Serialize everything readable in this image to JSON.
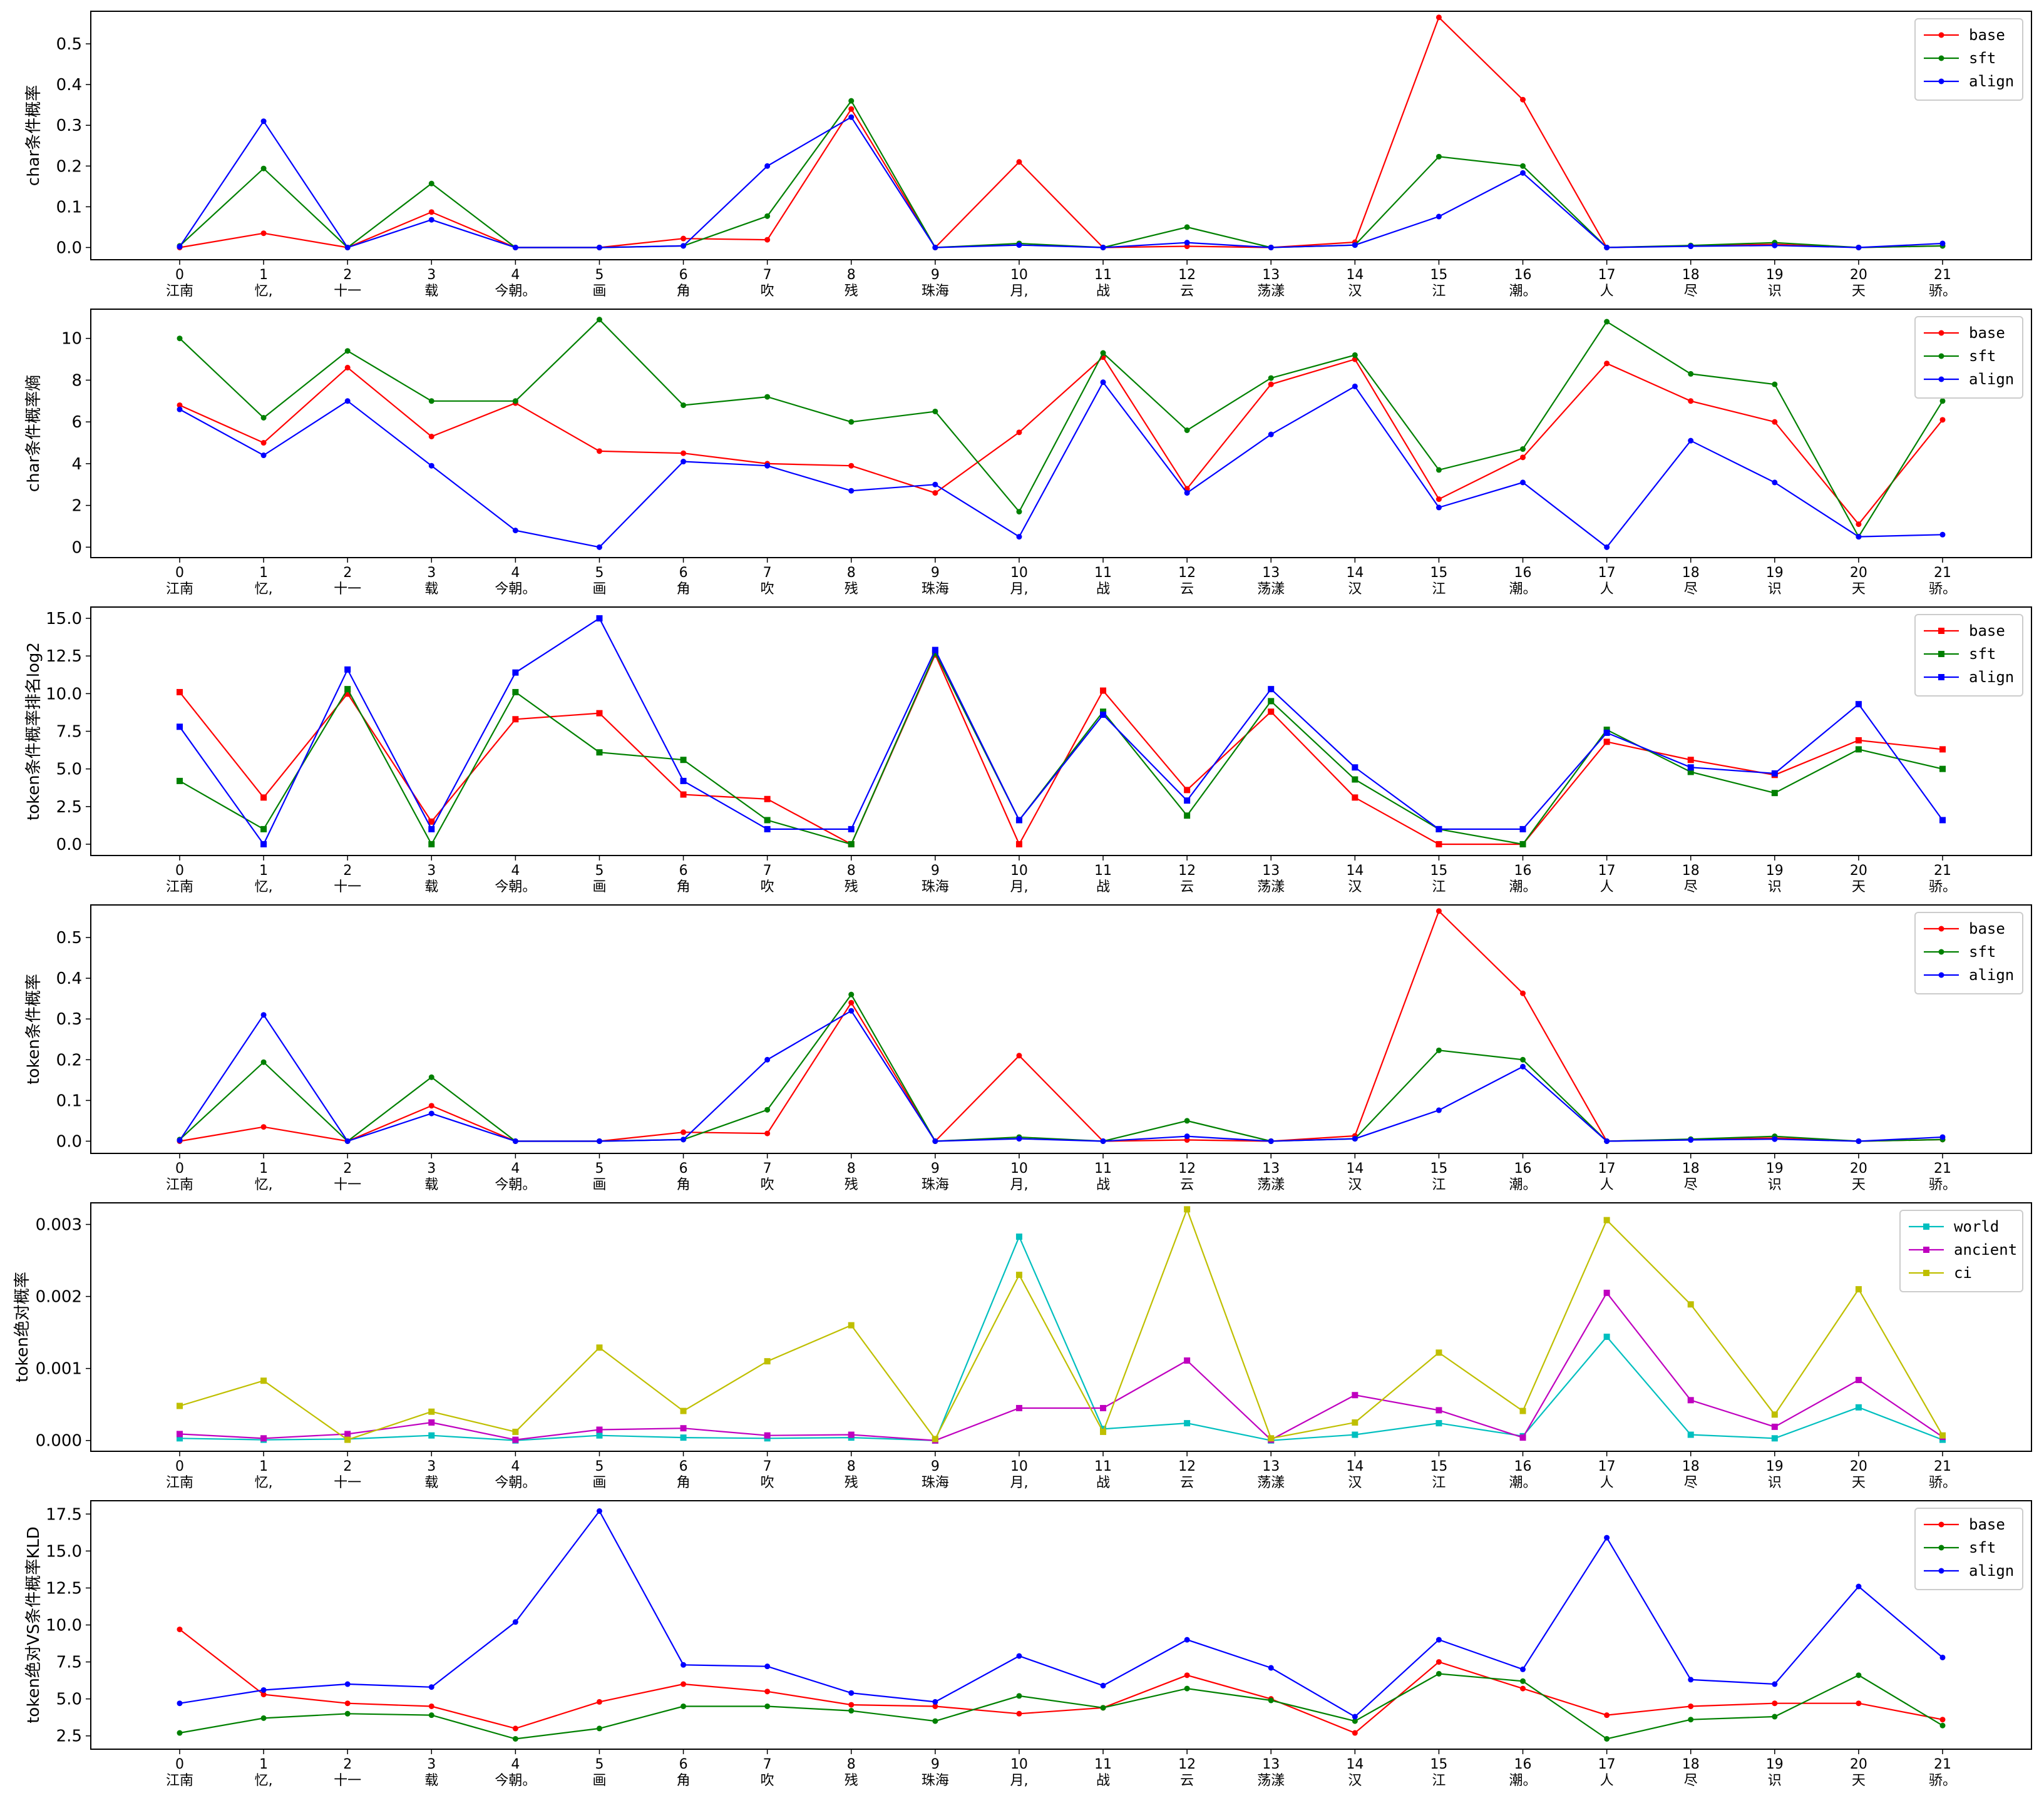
{
  "x_words": [
    "江南",
    "忆,",
    "十一",
    "载",
    "今朝。",
    "画",
    "角",
    "吹",
    "残",
    "珠海",
    "月,",
    "战",
    "云",
    "荡漾",
    "汉",
    "江",
    "潮。",
    "人",
    "尽",
    "识",
    "天",
    "骄。"
  ],
  "chart_data": [
    {
      "type": "line",
      "ylabel": "char条件概率",
      "ylim": [
        -0.03,
        0.58
      ],
      "yticks": [
        0.0,
        0.1,
        0.2,
        0.3,
        0.4,
        0.5
      ],
      "ytick_labels": [
        "0.0",
        "0.1",
        "0.2",
        "0.3",
        "0.4",
        "0.5"
      ],
      "marker": "circle",
      "series": [
        {
          "name": "base",
          "color": "#ff0000",
          "values": [
            0.0,
            0.035,
            0.0,
            0.087,
            0.0,
            0.0,
            0.022,
            0.019,
            0.34,
            0.0,
            0.21,
            0.0,
            0.003,
            0.0,
            0.013,
            0.565,
            0.363,
            0.0,
            0.004,
            0.008,
            0.0,
            0.004
          ]
        },
        {
          "name": "sft",
          "color": "#008000",
          "values": [
            0.004,
            0.194,
            0.0,
            0.157,
            0.0,
            0.0,
            0.004,
            0.077,
            0.36,
            0.0,
            0.01,
            0.0,
            0.05,
            0.0,
            0.006,
            0.223,
            0.2,
            0.0,
            0.005,
            0.012,
            0.0,
            0.004
          ]
        },
        {
          "name": "align",
          "color": "#0000ff",
          "values": [
            0.002,
            0.31,
            0.0,
            0.068,
            0.0,
            0.0,
            0.004,
            0.2,
            0.32,
            0.0,
            0.006,
            0.0,
            0.012,
            0.0,
            0.006,
            0.076,
            0.183,
            0.0,
            0.003,
            0.005,
            0.0,
            0.01
          ]
        }
      ]
    },
    {
      "type": "line",
      "ylabel": "char条件概率熵",
      "ylim": [
        -0.5,
        11.4
      ],
      "yticks": [
        0,
        2,
        4,
        6,
        8,
        10
      ],
      "ytick_labels": [
        "0",
        "2",
        "4",
        "6",
        "8",
        "10"
      ],
      "marker": "circle",
      "series": [
        {
          "name": "base",
          "color": "#ff0000",
          "values": [
            6.8,
            5.0,
            8.6,
            5.3,
            6.9,
            4.6,
            4.5,
            4.0,
            3.9,
            2.6,
            5.5,
            9.1,
            2.8,
            7.8,
            9.0,
            2.3,
            4.3,
            8.8,
            7.0,
            6.0,
            1.1,
            6.1
          ]
        },
        {
          "name": "sft",
          "color": "#008000",
          "values": [
            10.0,
            6.2,
            9.4,
            7.0,
            7.0,
            10.9,
            6.8,
            7.2,
            6.0,
            6.5,
            1.7,
            9.3,
            5.6,
            8.1,
            9.2,
            3.7,
            4.7,
            10.8,
            8.3,
            7.8,
            0.5,
            7.0
          ]
        },
        {
          "name": "align",
          "color": "#0000ff",
          "values": [
            6.6,
            4.4,
            7.0,
            3.9,
            0.8,
            0.0,
            4.1,
            3.9,
            2.7,
            3.0,
            0.5,
            7.9,
            2.6,
            5.4,
            7.7,
            1.9,
            3.1,
            0.0,
            5.1,
            3.1,
            0.5,
            0.6
          ]
        }
      ]
    },
    {
      "type": "line",
      "ylabel": "token条件概率排名log2",
      "ylim": [
        -0.75,
        15.75
      ],
      "yticks": [
        0.0,
        2.5,
        5.0,
        7.5,
        10.0,
        12.5,
        15.0
      ],
      "ytick_labels": [
        "0.0",
        "2.5",
        "5.0",
        "7.5",
        "10.0",
        "12.5",
        "15.0"
      ],
      "marker": "square",
      "series": [
        {
          "name": "base",
          "color": "#ff0000",
          "values": [
            10.1,
            3.1,
            10.0,
            1.5,
            8.3,
            8.7,
            3.3,
            3.0,
            0.0,
            12.6,
            0.0,
            10.2,
            3.6,
            8.8,
            3.1,
            0.0,
            0.0,
            6.8,
            5.6,
            4.6,
            6.9,
            6.3
          ]
        },
        {
          "name": "sft",
          "color": "#008000",
          "values": [
            4.2,
            1.0,
            10.3,
            0.0,
            10.1,
            6.1,
            5.6,
            1.6,
            0.0,
            12.7,
            1.6,
            8.8,
            1.9,
            9.5,
            4.3,
            1.0,
            0.0,
            7.6,
            4.8,
            3.4,
            6.3,
            5.0
          ]
        },
        {
          "name": "align",
          "color": "#0000ff",
          "values": [
            7.8,
            0.0,
            11.6,
            1.0,
            11.4,
            15.0,
            4.2,
            1.0,
            1.0,
            12.9,
            1.6,
            8.6,
            2.9,
            10.3,
            5.1,
            1.0,
            1.0,
            7.4,
            5.1,
            4.7,
            9.3,
            1.6
          ]
        }
      ]
    },
    {
      "type": "line",
      "ylabel": "token条件概率",
      "ylim": [
        -0.03,
        0.58
      ],
      "yticks": [
        0.0,
        0.1,
        0.2,
        0.3,
        0.4,
        0.5
      ],
      "ytick_labels": [
        "0.0",
        "0.1",
        "0.2",
        "0.3",
        "0.4",
        "0.5"
      ],
      "marker": "circle",
      "series": [
        {
          "name": "base",
          "color": "#ff0000",
          "values": [
            0.0,
            0.035,
            0.0,
            0.087,
            0.0,
            0.0,
            0.022,
            0.019,
            0.34,
            0.0,
            0.21,
            0.0,
            0.003,
            0.0,
            0.013,
            0.565,
            0.363,
            0.0,
            0.004,
            0.008,
            0.0,
            0.004
          ]
        },
        {
          "name": "sft",
          "color": "#008000",
          "values": [
            0.004,
            0.194,
            0.0,
            0.157,
            0.0,
            0.0,
            0.004,
            0.077,
            0.36,
            0.0,
            0.01,
            0.0,
            0.05,
            0.0,
            0.006,
            0.223,
            0.2,
            0.0,
            0.005,
            0.012,
            0.0,
            0.004
          ]
        },
        {
          "name": "align",
          "color": "#0000ff",
          "values": [
            0.002,
            0.31,
            0.0,
            0.068,
            0.0,
            0.0,
            0.004,
            0.2,
            0.32,
            0.0,
            0.006,
            0.0,
            0.012,
            0.0,
            0.006,
            0.076,
            0.183,
            0.0,
            0.003,
            0.005,
            0.0,
            0.01
          ]
        }
      ]
    },
    {
      "type": "line",
      "ylabel": "token绝对概率",
      "ylim": [
        -0.00015,
        0.0033
      ],
      "yticks": [
        0.0,
        0.001,
        0.002,
        0.003
      ],
      "ytick_labels": [
        "0.000",
        "0.001",
        "0.002",
        "0.003"
      ],
      "marker": "square",
      "series": [
        {
          "name": "world",
          "color": "#00bfbf",
          "values": [
            3e-05,
            1e-05,
            2e-05,
            7e-05,
            0.0,
            7e-05,
            4e-05,
            3e-05,
            4e-05,
            0.0,
            0.00283,
            0.00016,
            0.00024,
            0.0,
            8e-05,
            0.00024,
            6e-05,
            0.00144,
            8e-05,
            3e-05,
            0.00046,
            1e-05
          ]
        },
        {
          "name": "ancient",
          "color": "#bf00bf",
          "values": [
            9e-05,
            3e-05,
            9e-05,
            0.00025,
            1e-05,
            0.00015,
            0.00017,
            7e-05,
            8e-05,
            0.0,
            0.00045,
            0.00045,
            0.00111,
            1e-05,
            0.00063,
            0.00042,
            4e-05,
            0.00205,
            0.00056,
            0.00019,
            0.00084,
            5e-05
          ]
        },
        {
          "name": "ci",
          "color": "#bfbf00",
          "values": [
            0.00048,
            0.00083,
            1e-05,
            0.0004,
            0.00012,
            0.00129,
            0.00041,
            0.0011,
            0.0016,
            2e-05,
            0.0023,
            0.00012,
            0.00321,
            3e-05,
            0.00025,
            0.00122,
            0.00041,
            0.00306,
            0.00189,
            0.00036,
            0.0021,
            7e-05
          ]
        }
      ]
    },
    {
      "type": "line",
      "ylabel": "token绝对VS条件概率KLD",
      "ylim": [
        1.6,
        18.4
      ],
      "yticks": [
        2.5,
        5.0,
        7.5,
        10.0,
        12.5,
        15.0,
        17.5
      ],
      "ytick_labels": [
        "2.5",
        "5.0",
        "7.5",
        "10.0",
        "12.5",
        "15.0",
        "17.5"
      ],
      "marker": "circle",
      "series": [
        {
          "name": "base",
          "color": "#ff0000",
          "values": [
            9.7,
            5.3,
            4.7,
            4.5,
            3.0,
            4.8,
            6.0,
            5.5,
            4.6,
            4.5,
            4.0,
            4.4,
            6.6,
            5.0,
            2.7,
            7.5,
            5.7,
            3.9,
            4.5,
            4.7,
            4.7,
            3.6
          ]
        },
        {
          "name": "sft",
          "color": "#008000",
          "values": [
            2.7,
            3.7,
            4.0,
            3.9,
            2.3,
            3.0,
            4.5,
            4.5,
            4.2,
            3.5,
            5.2,
            4.4,
            5.7,
            4.9,
            3.5,
            6.7,
            6.2,
            2.3,
            3.6,
            3.8,
            6.6,
            3.2
          ]
        },
        {
          "name": "align",
          "color": "#0000ff",
          "values": [
            4.7,
            5.6,
            6.0,
            5.8,
            10.2,
            17.7,
            7.3,
            7.2,
            5.4,
            4.8,
            7.9,
            5.9,
            9.0,
            7.1,
            3.8,
            9.0,
            7.0,
            15.9,
            6.3,
            6.0,
            12.6,
            7.8
          ]
        }
      ]
    }
  ]
}
